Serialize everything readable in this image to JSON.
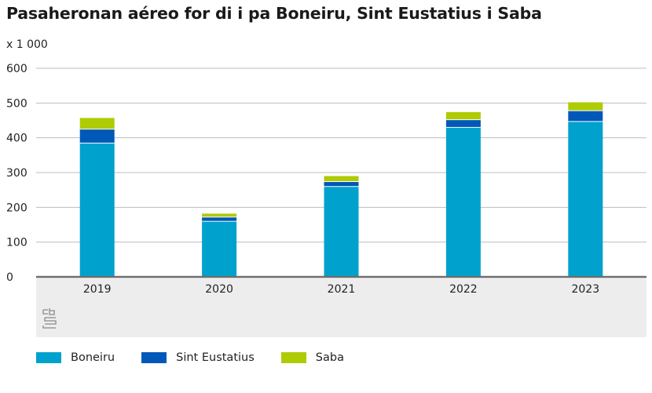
{
  "chart_data": {
    "type": "bar",
    "stacked": true,
    "title": "Pasaheronan aéreo for di i pa Boneiru, Sint Eustatius i Saba",
    "unit_label": "x 1 000",
    "categories": [
      "2019",
      "2020",
      "2021",
      "2022",
      "2023"
    ],
    "y_ticks": [
      "0",
      "100",
      "200",
      "300",
      "400",
      "500",
      "600"
    ],
    "ylim": [
      0,
      600
    ],
    "grid": true,
    "legend_position": "bottom-left",
    "series": [
      {
        "name": "Boneiru",
        "color": "#00a1cd",
        "values": [
          385,
          160,
          260,
          430,
          447
        ]
      },
      {
        "name": "Sint Eustatius",
        "color": "#0058b8",
        "values": [
          40,
          12,
          14,
          22,
          31
        ]
      },
      {
        "name": "Saba",
        "color": "#afcb05",
        "values": [
          32,
          10,
          16,
          22,
          24
        ]
      }
    ]
  }
}
